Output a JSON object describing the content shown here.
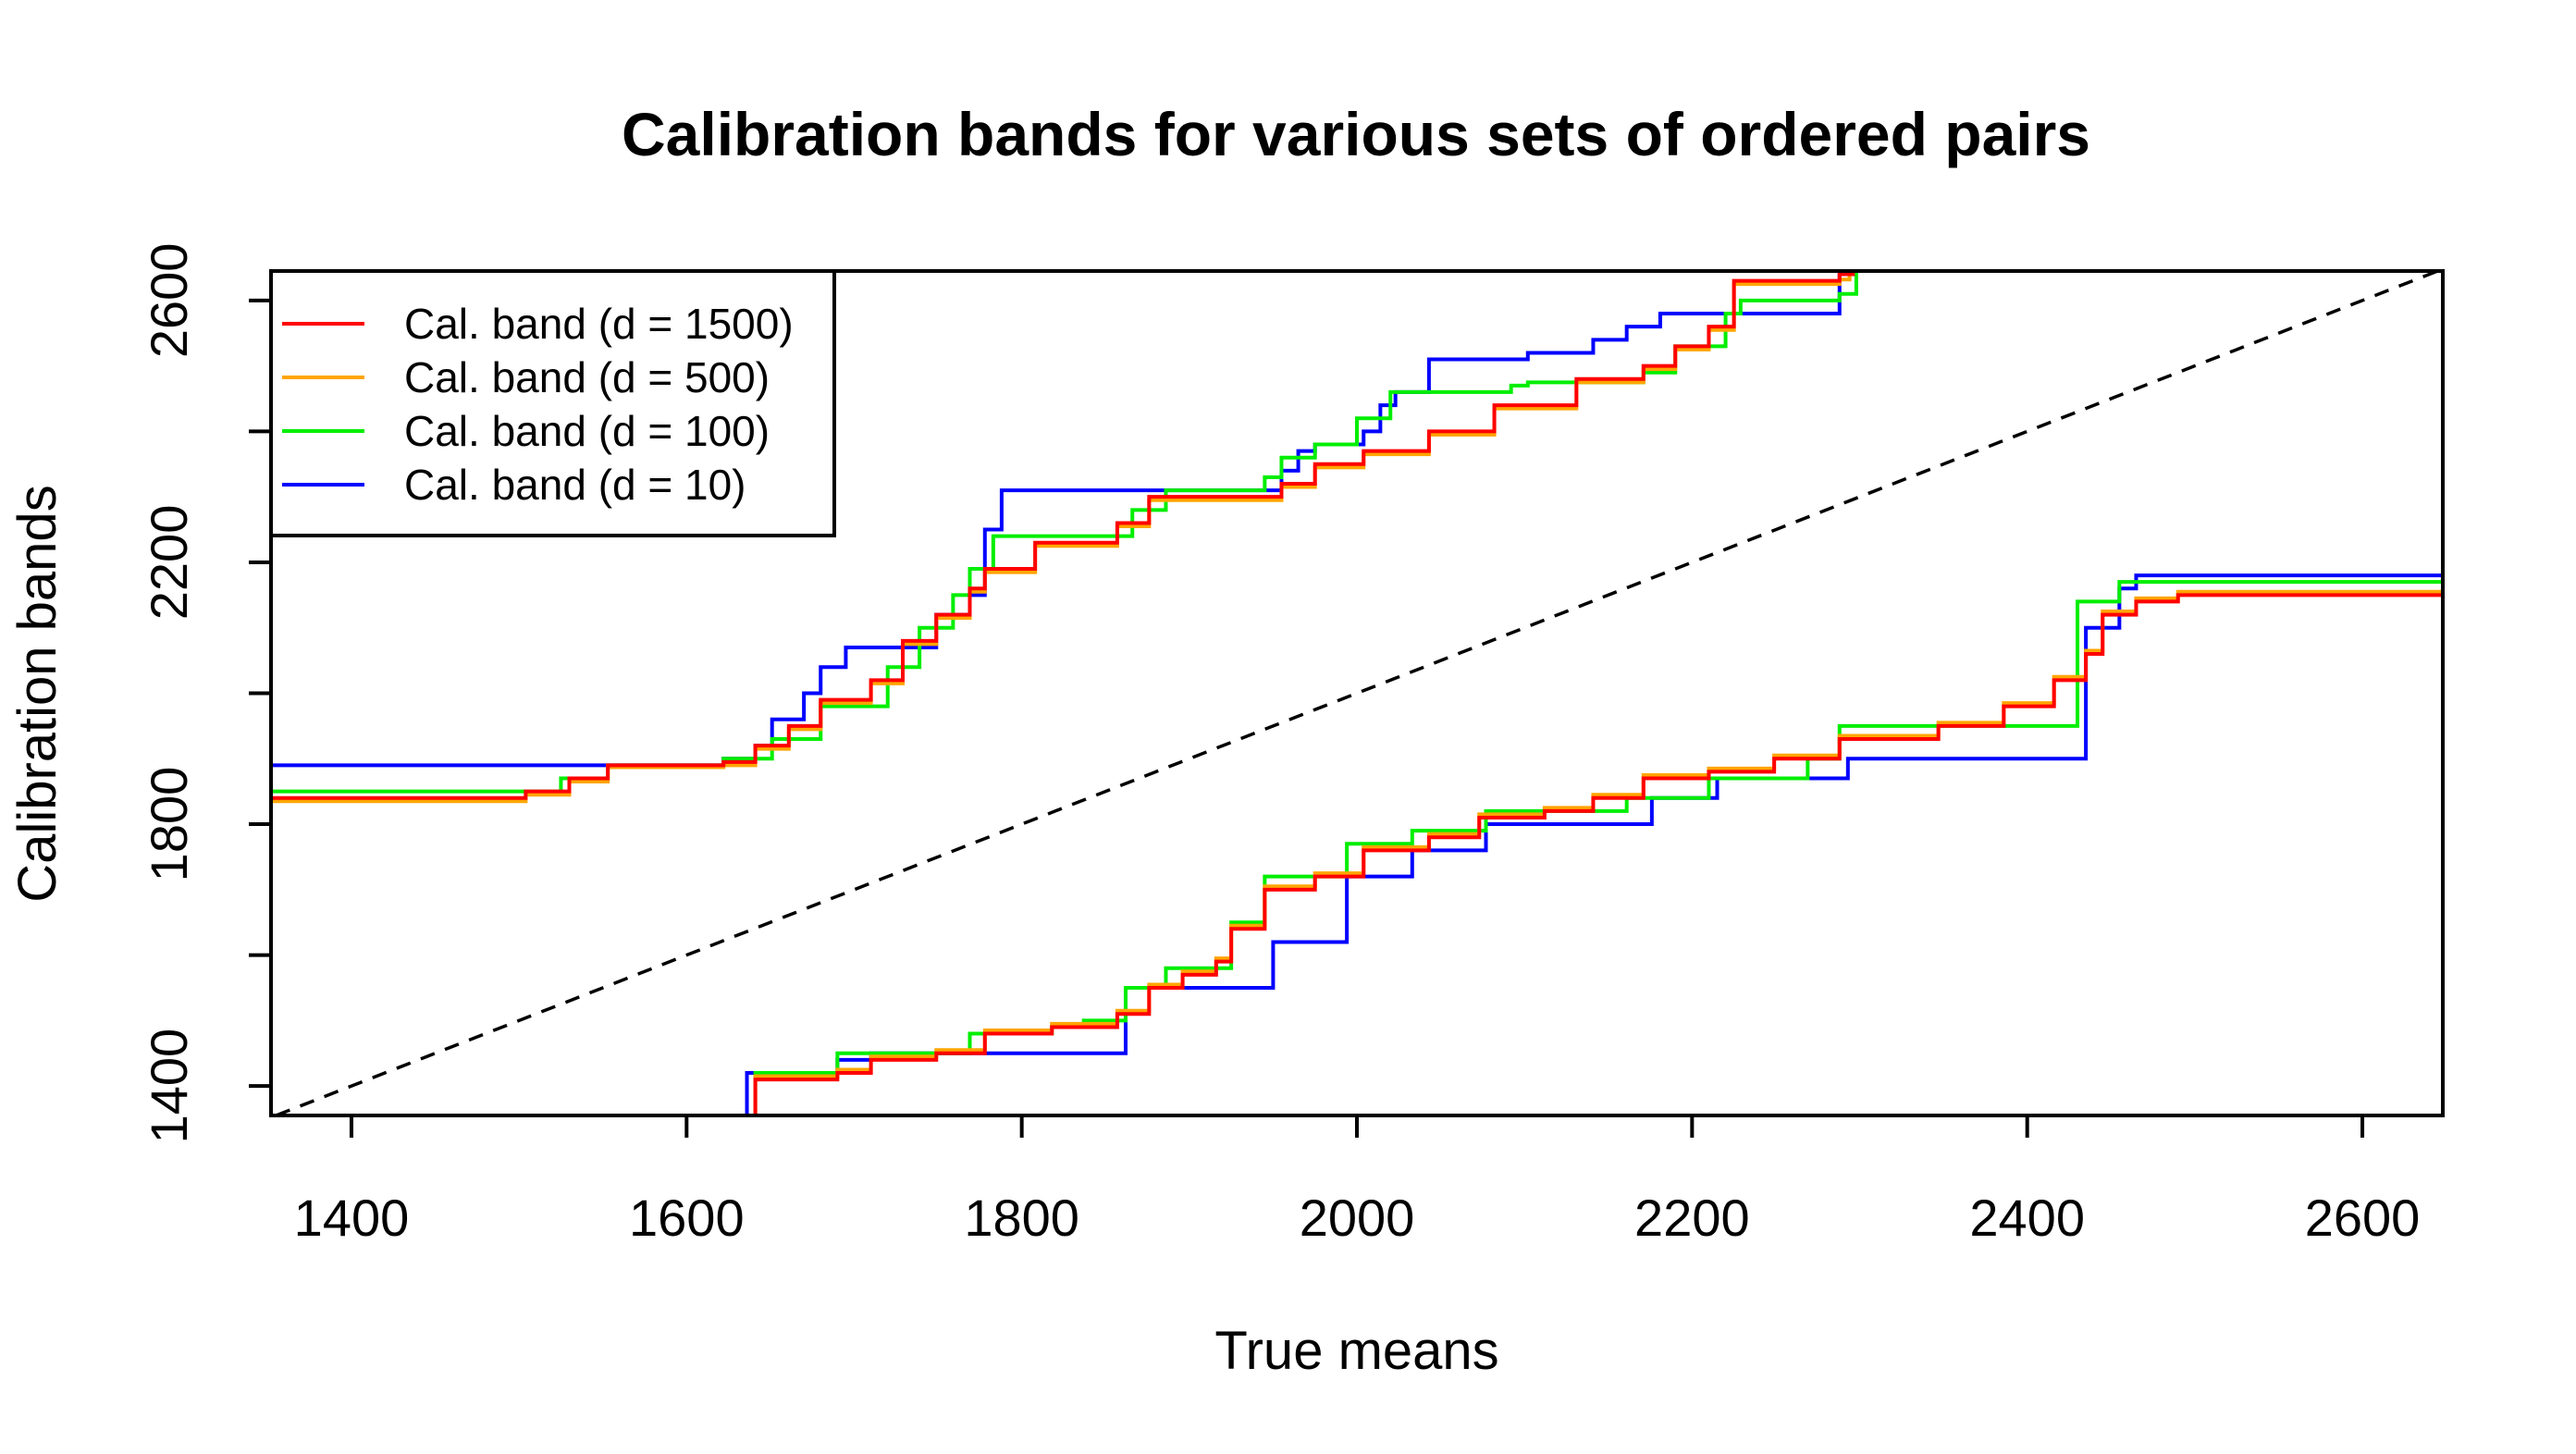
{
  "chart_data": {
    "type": "line",
    "title": "Calibration bands for various sets of ordered pairs",
    "xlabel": "True means",
    "ylabel": "Calibration bands",
    "xlim": [
      1352,
      2648
    ],
    "ylim": [
      1355,
      2645
    ],
    "xticks": [
      1400,
      1600,
      1800,
      2000,
      2200,
      2400,
      2600
    ],
    "yticks": [
      1400,
      1600,
      1800,
      2000,
      2200,
      2400,
      2600
    ],
    "xtick_labels": [
      "1400",
      "1600",
      "1800",
      "2000",
      "2200",
      "2400",
      "2600"
    ],
    "ytick_labels": [
      "1400",
      "",
      "1800",
      "",
      "2200",
      "",
      "2600"
    ],
    "grid": false,
    "legend_position": "top-left",
    "reference_line": {
      "style": "dashed",
      "color": "#000000",
      "equation": "y = x"
    },
    "series": [
      {
        "name": "Cal. band (d = 1500)",
        "color": "#ff0000",
        "upper": [
          [
            1352,
            1840
          ],
          [
            1504,
            1850
          ],
          [
            1530,
            1870
          ],
          [
            1553,
            1890
          ],
          [
            1622,
            1895
          ],
          [
            1641,
            1920
          ],
          [
            1661,
            1950
          ],
          [
            1680,
            1990
          ],
          [
            1710,
            2020
          ],
          [
            1729,
            2080
          ],
          [
            1749,
            2120
          ],
          [
            1769,
            2160
          ],
          [
            1778,
            2190
          ],
          [
            1808,
            2230
          ],
          [
            1857,
            2260
          ],
          [
            1876,
            2300
          ],
          [
            1955,
            2320
          ],
          [
            1975,
            2350
          ],
          [
            2004,
            2370
          ],
          [
            2043,
            2400
          ],
          [
            2082,
            2440
          ],
          [
            2131,
            2480
          ],
          [
            2171,
            2500
          ],
          [
            2190,
            2530
          ],
          [
            2210,
            2560
          ],
          [
            2225,
            2630
          ],
          [
            2288,
            2640
          ],
          [
            2296,
            2650
          ]
        ],
        "lower": [
          [
            1602,
            1355
          ],
          [
            1641,
            1410
          ],
          [
            1690,
            1420
          ],
          [
            1710,
            1440
          ],
          [
            1749,
            1450
          ],
          [
            1778,
            1480
          ],
          [
            1818,
            1490
          ],
          [
            1857,
            1510
          ],
          [
            1876,
            1550
          ],
          [
            1896,
            1570
          ],
          [
            1916,
            1590
          ],
          [
            1925,
            1640
          ],
          [
            1945,
            1700
          ],
          [
            1975,
            1720
          ],
          [
            2004,
            1760
          ],
          [
            2043,
            1780
          ],
          [
            2073,
            1810
          ],
          [
            2112,
            1820
          ],
          [
            2141,
            1840
          ],
          [
            2171,
            1870
          ],
          [
            2210,
            1880
          ],
          [
            2249,
            1900
          ],
          [
            2288,
            1930
          ],
          [
            2347,
            1950
          ],
          [
            2386,
            1980
          ],
          [
            2416,
            2020
          ],
          [
            2435,
            2060
          ],
          [
            2445,
            2120
          ],
          [
            2465,
            2140
          ],
          [
            2490,
            2150
          ],
          [
            2648,
            2150
          ]
        ]
      },
      {
        "name": "Cal. band (d = 500)",
        "color": "#ffa500",
        "upper": [
          [
            1352,
            1835
          ],
          [
            1504,
            1845
          ],
          [
            1530,
            1865
          ],
          [
            1553,
            1887
          ],
          [
            1622,
            1890
          ],
          [
            1641,
            1915
          ],
          [
            1661,
            1945
          ],
          [
            1680,
            1985
          ],
          [
            1710,
            2015
          ],
          [
            1729,
            2075
          ],
          [
            1749,
            2115
          ],
          [
            1769,
            2155
          ],
          [
            1778,
            2185
          ],
          [
            1808,
            2225
          ],
          [
            1857,
            2255
          ],
          [
            1876,
            2295
          ],
          [
            1955,
            2315
          ],
          [
            1975,
            2345
          ],
          [
            2004,
            2365
          ],
          [
            2043,
            2395
          ],
          [
            2082,
            2435
          ],
          [
            2131,
            2475
          ],
          [
            2171,
            2495
          ],
          [
            2190,
            2525
          ],
          [
            2210,
            2555
          ],
          [
            2225,
            2625
          ],
          [
            2288,
            2632
          ],
          [
            2294,
            2650
          ]
        ],
        "lower": [
          [
            1604,
            1355
          ],
          [
            1641,
            1415
          ],
          [
            1690,
            1425
          ],
          [
            1710,
            1445
          ],
          [
            1749,
            1455
          ],
          [
            1778,
            1485
          ],
          [
            1818,
            1495
          ],
          [
            1857,
            1515
          ],
          [
            1876,
            1555
          ],
          [
            1896,
            1575
          ],
          [
            1916,
            1595
          ],
          [
            1925,
            1645
          ],
          [
            1945,
            1705
          ],
          [
            1975,
            1725
          ],
          [
            2004,
            1765
          ],
          [
            2043,
            1785
          ],
          [
            2073,
            1815
          ],
          [
            2112,
            1825
          ],
          [
            2141,
            1845
          ],
          [
            2171,
            1875
          ],
          [
            2210,
            1885
          ],
          [
            2249,
            1905
          ],
          [
            2288,
            1935
          ],
          [
            2347,
            1955
          ],
          [
            2386,
            1985
          ],
          [
            2416,
            2025
          ],
          [
            2435,
            2065
          ],
          [
            2445,
            2125
          ],
          [
            2465,
            2145
          ],
          [
            2490,
            2155
          ],
          [
            2648,
            2155
          ]
        ]
      },
      {
        "name": "Cal. band (d = 100)",
        "color": "#00ee00",
        "upper": [
          [
            1352,
            1850
          ],
          [
            1500,
            1850
          ],
          [
            1525,
            1870
          ],
          [
            1553,
            1890
          ],
          [
            1622,
            1900
          ],
          [
            1651,
            1930
          ],
          [
            1680,
            1980
          ],
          [
            1720,
            2040
          ],
          [
            1739,
            2100
          ],
          [
            1759,
            2150
          ],
          [
            1769,
            2190
          ],
          [
            1783,
            2240
          ],
          [
            1866,
            2280
          ],
          [
            1886,
            2310
          ],
          [
            1945,
            2330
          ],
          [
            1955,
            2360
          ],
          [
            1975,
            2380
          ],
          [
            2000,
            2420
          ],
          [
            2020,
            2460
          ],
          [
            2092,
            2470
          ],
          [
            2102,
            2475
          ],
          [
            2171,
            2490
          ],
          [
            2190,
            2530
          ],
          [
            2220,
            2580
          ],
          [
            2229,
            2600
          ],
          [
            2288,
            2610
          ],
          [
            2298,
            2650
          ]
        ],
        "lower": [
          [
            1600,
            1355
          ],
          [
            1641,
            1420
          ],
          [
            1690,
            1450
          ],
          [
            1769,
            1480
          ],
          [
            1818,
            1490
          ],
          [
            1837,
            1500
          ],
          [
            1862,
            1550
          ],
          [
            1886,
            1580
          ],
          [
            1925,
            1650
          ],
          [
            1945,
            1720
          ],
          [
            1994,
            1770
          ],
          [
            2033,
            1790
          ],
          [
            2077,
            1820
          ],
          [
            2161,
            1840
          ],
          [
            2210,
            1870
          ],
          [
            2269,
            1900
          ],
          [
            2288,
            1950
          ],
          [
            2430,
            2140
          ],
          [
            2455,
            2170
          ],
          [
            2648,
            2170
          ]
        ]
      },
      {
        "name": "Cal. band (d = 10)",
        "color": "#0000ff",
        "upper": [
          [
            1352,
            1890
          ],
          [
            1622,
            1900
          ],
          [
            1641,
            1920
          ],
          [
            1651,
            1960
          ],
          [
            1670,
            2000
          ],
          [
            1680,
            2040
          ],
          [
            1695,
            2070
          ],
          [
            1749,
            2120
          ],
          [
            1769,
            2150
          ],
          [
            1778,
            2250
          ],
          [
            1788,
            2310
          ],
          [
            1955,
            2340
          ],
          [
            1965,
            2370
          ],
          [
            1975,
            2380
          ],
          [
            2004,
            2400
          ],
          [
            2014,
            2440
          ],
          [
            2023,
            2460
          ],
          [
            2043,
            2510
          ],
          [
            2102,
            2520
          ],
          [
            2141,
            2540
          ],
          [
            2161,
            2560
          ],
          [
            2181,
            2580
          ],
          [
            2288,
            2650
          ]
        ],
        "lower": [
          [
            1607,
            1355
          ],
          [
            1636,
            1420
          ],
          [
            1690,
            1440
          ],
          [
            1710,
            1450
          ],
          [
            1862,
            1550
          ],
          [
            1950,
            1620
          ],
          [
            1994,
            1720
          ],
          [
            2033,
            1760
          ],
          [
            2077,
            1800
          ],
          [
            2176,
            1840
          ],
          [
            2215,
            1870
          ],
          [
            2293,
            1900
          ],
          [
            2435,
            2100
          ],
          [
            2455,
            2160
          ],
          [
            2465,
            2180
          ],
          [
            2648,
            2180
          ]
        ]
      }
    ]
  }
}
